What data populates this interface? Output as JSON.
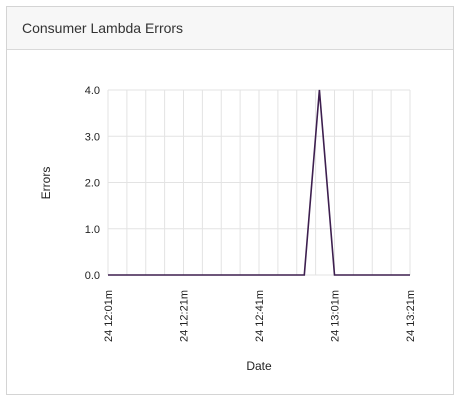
{
  "panel": {
    "title": "Consumer Lambda Errors"
  },
  "chart_data": {
    "type": "line",
    "title": "",
    "xlabel": "Date",
    "ylabel": "Errors",
    "ylim": [
      0,
      4
    ],
    "y_ticks": [
      "0.0",
      "1.0",
      "2.0",
      "3.0",
      "4.0"
    ],
    "x_ticks": [
      "24 12:01m",
      "24 12:21m",
      "24 12:41m",
      "24 13:01m",
      "24 13:21m"
    ],
    "grid": true,
    "legend": "none",
    "series": [
      {
        "color": "#3d1f4f",
        "points": [
          {
            "x": "24 12:01m",
            "y": 0
          },
          {
            "x": "24 12:53m",
            "y": 0
          },
          {
            "x": "24 12:57m",
            "y": 4
          },
          {
            "x": "24 13:01m",
            "y": 0
          },
          {
            "x": "24 13:21m",
            "y": 0
          }
        ]
      }
    ]
  }
}
